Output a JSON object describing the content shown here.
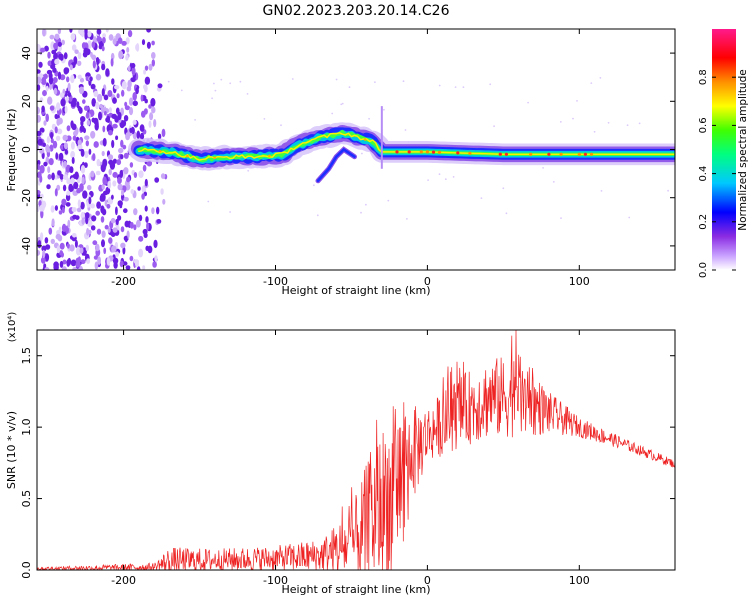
{
  "title": "GN02.2023.203.20.14.C26",
  "chart_data": [
    {
      "type": "heatmap",
      "xlabel": "Height of straight line (km)",
      "ylabel": "Frequency (Hz)",
      "xlim": [
        -257,
        163
      ],
      "ylim": [
        -50,
        50
      ],
      "xticks": [
        -200,
        -100,
        0,
        100
      ],
      "xtick_labels": [
        "-200",
        "-100",
        "0",
        "100"
      ],
      "yticks": [
        -40,
        -20,
        0,
        20,
        40
      ],
      "ytick_labels": [
        "-40",
        "-20",
        "0",
        "20",
        "40"
      ],
      "grid": false,
      "colorbar": {
        "label": "Normalized spectral amplitude",
        "range": [
          0,
          1
        ],
        "ticks": [
          0.0,
          0.2,
          0.4,
          0.6,
          0.8
        ],
        "tick_labels": [
          "0.0",
          "0.2",
          "0.4",
          "0.6",
          "0.8"
        ],
        "colors": [
          "#ffffff",
          "#8a2be2",
          "#0000ff",
          "#00ffff",
          "#00ff00",
          "#ffff00",
          "#ff8000",
          "#ff0000",
          "#ff1493"
        ]
      },
      "features": {
        "noise_region_x": [
          -257,
          -180
        ],
        "main_trace": [
          {
            "x": -190,
            "y": 0
          },
          {
            "x": -170,
            "y": -1
          },
          {
            "x": -150,
            "y": -4
          },
          {
            "x": -130,
            "y": -3
          },
          {
            "x": -110,
            "y": -3
          },
          {
            "x": -95,
            "y": -2
          },
          {
            "x": -85,
            "y": 2
          },
          {
            "x": -70,
            "y": 5
          },
          {
            "x": -55,
            "y": 7
          },
          {
            "x": -45,
            "y": 5
          },
          {
            "x": -35,
            "y": 3
          },
          {
            "x": -30,
            "y": -1
          },
          {
            "x": 0,
            "y": -1
          },
          {
            "x": 50,
            "y": -2
          },
          {
            "x": 100,
            "y": -2
          },
          {
            "x": 163,
            "y": -2
          }
        ],
        "branch_trace": [
          {
            "x": -72,
            "y": -13
          },
          {
            "x": -65,
            "y": -8
          },
          {
            "x": -60,
            "y": -3
          },
          {
            "x": -55,
            "y": 0
          },
          {
            "x": -48,
            "y": -3
          }
        ]
      }
    },
    {
      "type": "line",
      "xlabel": "Height of straight line (km)",
      "ylabel": "SNR (10 * v/v)",
      "y_multiplier_label": "(x10⁴)",
      "xlim": [
        -257,
        163
      ],
      "ylim": [
        0,
        1.68
      ],
      "xticks": [
        -200,
        -100,
        0,
        100
      ],
      "xtick_labels": [
        "-200",
        "-100",
        "0",
        "100"
      ],
      "yticks": [
        0,
        0.5,
        1.0,
        1.5
      ],
      "ytick_labels": [
        "0.0",
        "0.5",
        "1.0",
        "1.5"
      ],
      "grid": false,
      "color": "#ee2222",
      "envelope": [
        {
          "x": -257,
          "base": 0.01,
          "spread": 0.01
        },
        {
          "x": -180,
          "base": 0.02,
          "spread": 0.03
        },
        {
          "x": -170,
          "base": 0.06,
          "spread": 0.1
        },
        {
          "x": -140,
          "base": 0.07,
          "spread": 0.08
        },
        {
          "x": -100,
          "base": 0.08,
          "spread": 0.09
        },
        {
          "x": -70,
          "base": 0.1,
          "spread": 0.12
        },
        {
          "x": -50,
          "base": 0.18,
          "spread": 0.25
        },
        {
          "x": -40,
          "base": 0.3,
          "spread": 0.45
        },
        {
          "x": -30,
          "base": 0.45,
          "spread": 0.55
        },
        {
          "x": -20,
          "base": 0.62,
          "spread": 0.6
        },
        {
          "x": -10,
          "base": 0.8,
          "spread": 0.35
        },
        {
          "x": 0,
          "base": 0.95,
          "spread": 0.2
        },
        {
          "x": 20,
          "base": 1.1,
          "spread": 0.25
        },
        {
          "x": 40,
          "base": 1.2,
          "spread": 0.28
        },
        {
          "x": 60,
          "base": 1.22,
          "spread": 0.3
        },
        {
          "x": 80,
          "base": 1.1,
          "spread": 0.15
        },
        {
          "x": 100,
          "base": 1.0,
          "spread": 0.07
        },
        {
          "x": 130,
          "base": 0.88,
          "spread": 0.04
        },
        {
          "x": 163,
          "base": 0.74,
          "spread": 0.03
        }
      ]
    }
  ]
}
